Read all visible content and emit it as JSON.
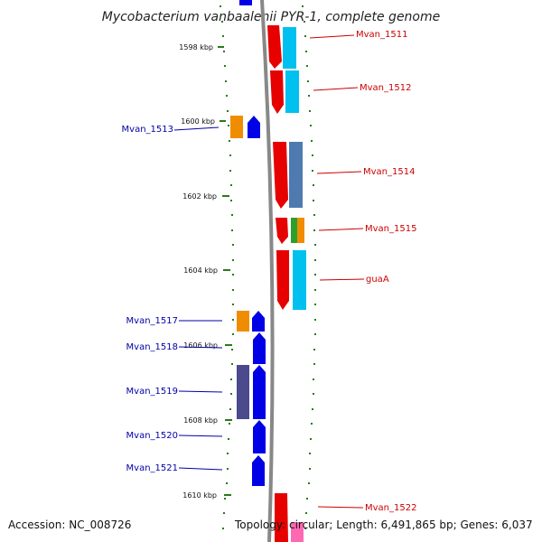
{
  "title": "Mycobacterium vanbaalenii PYR-1, complete genome",
  "footer": {
    "accession": "Accession: NC_008726",
    "topology": "Topology: circular; Length: 6,491,865 bp; Genes: 6,037"
  },
  "ticks": [
    {
      "label": "1598 kbp",
      "value": 1598
    },
    {
      "label": "1600 kbp",
      "value": 1600
    },
    {
      "label": "1602 kbp",
      "value": 1602
    },
    {
      "label": "1604 kbp",
      "value": 1604
    },
    {
      "label": "1606 kbp",
      "value": 1606
    },
    {
      "label": "1608 kbp",
      "value": 1608
    },
    {
      "label": "1610 kbp",
      "value": 1610
    }
  ],
  "genes_right": [
    {
      "name": "Mvan_1511",
      "color": "#e60000"
    },
    {
      "name": "Mvan_1512",
      "color": "#e60000"
    },
    {
      "name": "Mvan_1514",
      "color": "#e60000"
    },
    {
      "name": "Mvan_1515",
      "color": "#e60000"
    },
    {
      "name": "guaA",
      "color": "#e60000"
    },
    {
      "name": "Mvan_1522",
      "color": "#e60000"
    }
  ],
  "genes_left": [
    {
      "name": "Mvan_1513",
      "color": "#0000cc"
    },
    {
      "name": "Mvan_1517",
      "color": "#0000cc"
    },
    {
      "name": "Mvan_1518",
      "color": "#0000cc"
    },
    {
      "name": "Mvan_1519",
      "color": "#0000cc"
    },
    {
      "name": "Mvan_1520",
      "color": "#0000cc"
    },
    {
      "name": "Mvan_1521",
      "color": "#0000cc"
    }
  ],
  "colors": {
    "backbone": "#888888",
    "tick": "#2a7a1a",
    "forward_gene": "#e60000",
    "reverse_gene": "#0000e6",
    "cog_cyan": "#00c0f0",
    "cog_steel": "#4f7ab0",
    "cog_orange": "#f08c00",
    "cog_green": "#2ca02c",
    "cog_purple": "#4a4a8c",
    "cog_pink": "#ff69b4"
  }
}
